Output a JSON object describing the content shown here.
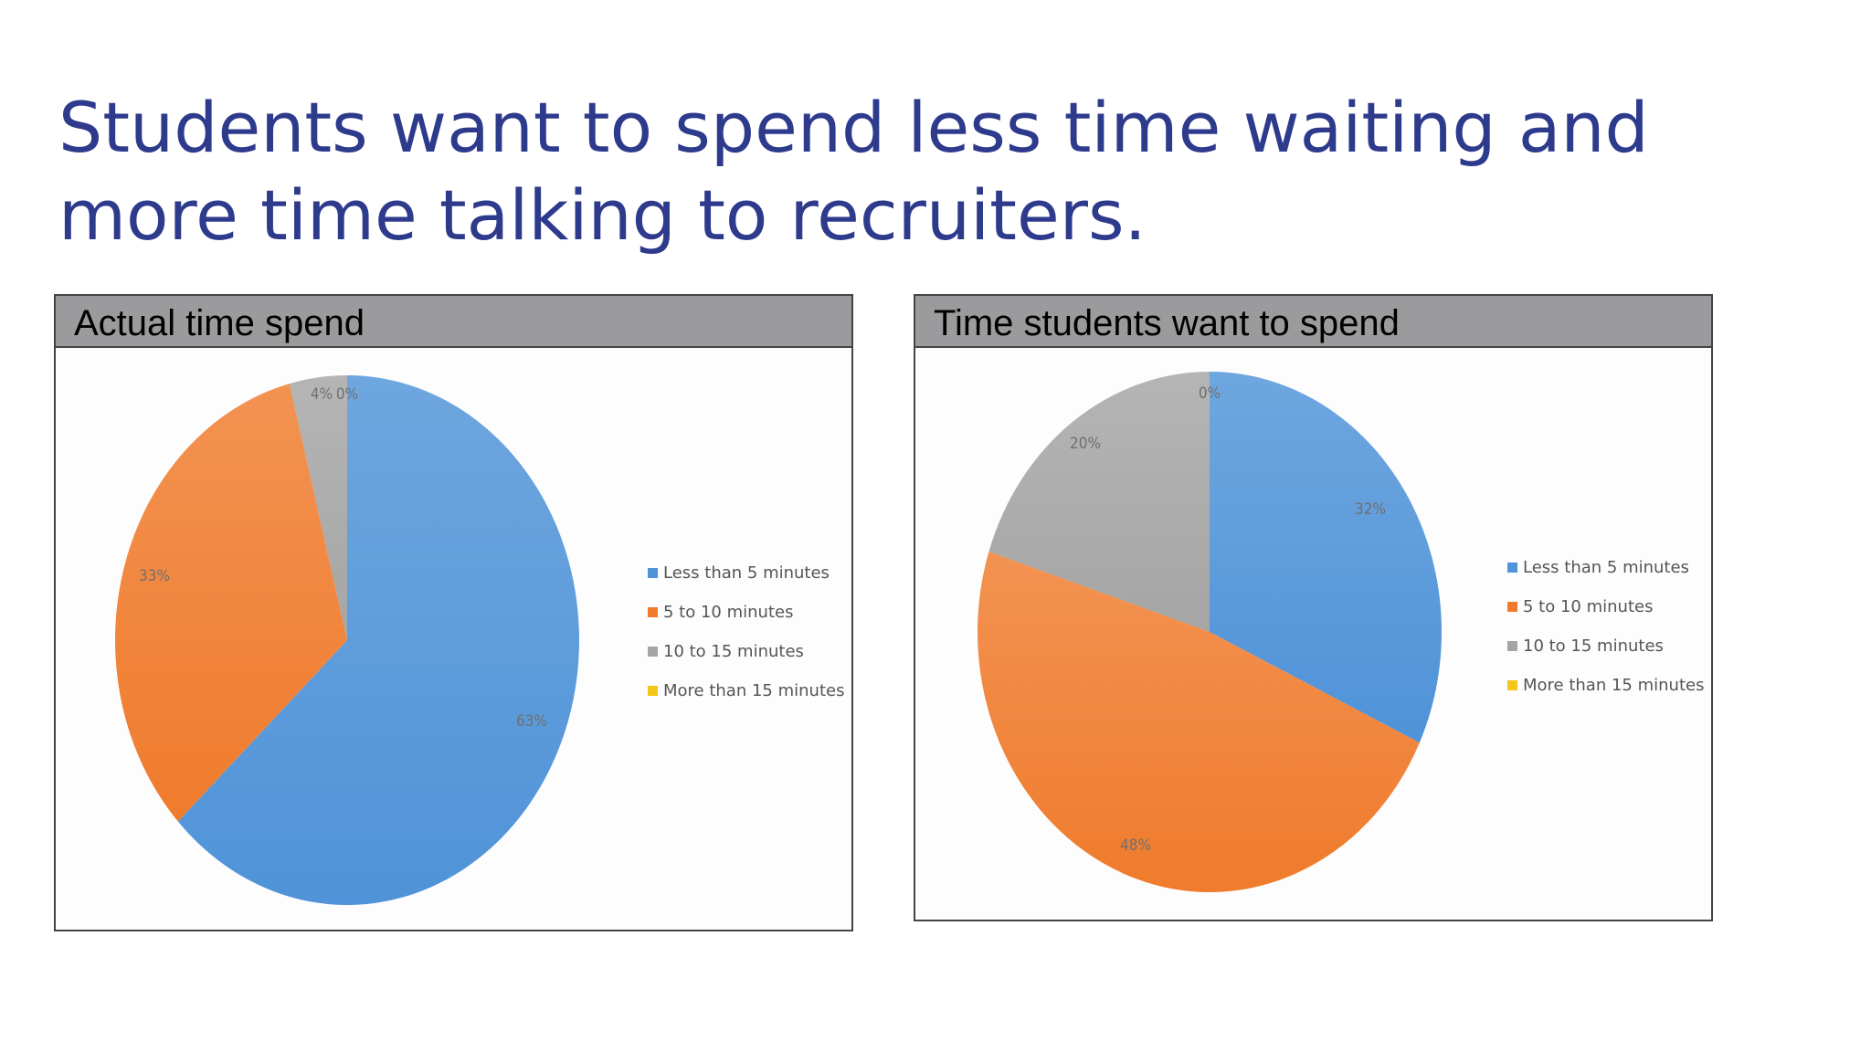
{
  "slide": {
    "title": "Students want to spend less time waiting and more time talking to recruiters."
  },
  "colors": {
    "title": "#2e3a8c",
    "header_bg": "#9b9a9c",
    "blue": "#4f93d8",
    "orange": "#f07b2c",
    "gray": "#a5a5a5",
    "yellow": "#f5c518"
  },
  "chart_data": [
    {
      "type": "pie",
      "title": "Actual time spend",
      "categories": [
        "Less than 5 minutes",
        "5 to 10 minutes",
        "10 to 15 minutes",
        "More than 15 minutes"
      ],
      "values": [
        63,
        33,
        4,
        0
      ],
      "labels": [
        "63%",
        "33%",
        "4%",
        "0%"
      ],
      "legend_position": "right"
    },
    {
      "type": "pie",
      "title": "Time students want to spend",
      "categories": [
        "Less than 5 minutes",
        "5 to 10 minutes",
        "10 to 15 minutes",
        "More than 15 minutes"
      ],
      "values": [
        32,
        48,
        20,
        0
      ],
      "labels": [
        "32%",
        "48%",
        "20%",
        "0%"
      ],
      "legend_position": "right"
    }
  ]
}
